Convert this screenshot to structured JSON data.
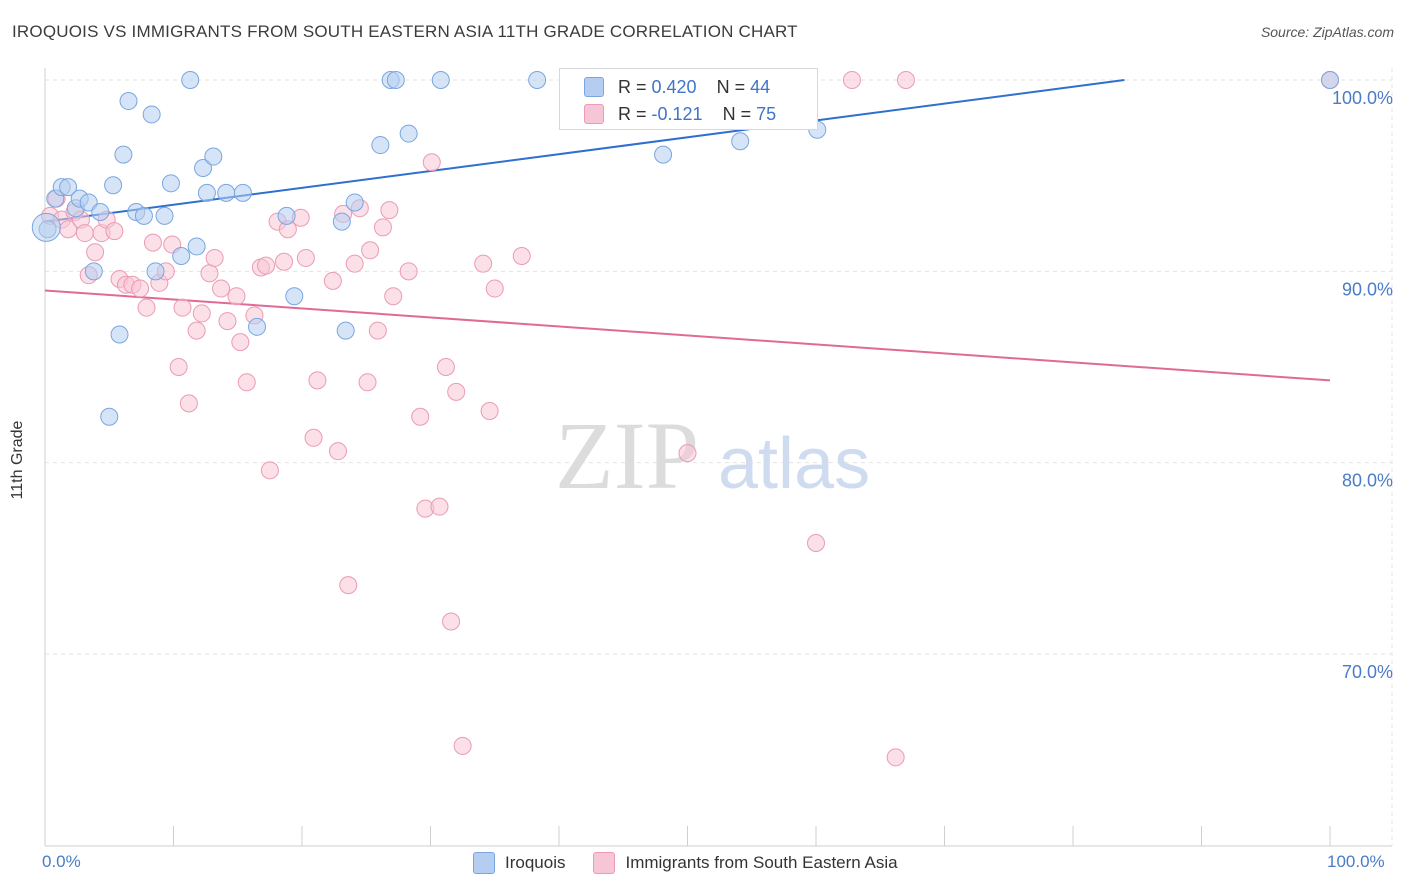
{
  "title": "IROQUOIS VS IMMIGRANTS FROM SOUTH EASTERN ASIA 11TH GRADE CORRELATION CHART",
  "source": "Source: ZipAtlas.com",
  "watermark": {
    "zip": "ZIP",
    "atlas": "atlas"
  },
  "chart_data": {
    "type": "scatter",
    "xlabel": "",
    "ylabel": "11th Grade",
    "xlim": [
      0,
      100
    ],
    "ylim": [
      61,
      102
    ],
    "x_ticks": [
      "0.0%",
      "100.0%"
    ],
    "y_ticks": [
      {
        "value": 100,
        "label": "100.0%"
      },
      {
        "value": 90,
        "label": "90.0%"
      },
      {
        "value": 80,
        "label": "80.0%"
      },
      {
        "value": 70,
        "label": "70.0%"
      }
    ],
    "grid": true,
    "legend_position": "bottom",
    "series": [
      {
        "name": "Iroquois",
        "color": "#7aa6e0",
        "fill": "#b4cdf0",
        "line_color": "#2f6fcf",
        "R": "0.420",
        "N": "44",
        "trend": {
          "x0": 0,
          "y0": 92.6,
          "x1": 84,
          "y1": 100.0
        },
        "points": [
          [
            0.2,
            92.2
          ],
          [
            0.8,
            93.8
          ],
          [
            1.3,
            94.4
          ],
          [
            1.8,
            94.4
          ],
          [
            2.4,
            93.3
          ],
          [
            2.7,
            93.8
          ],
          [
            3.4,
            93.6
          ],
          [
            3.8,
            90.0
          ],
          [
            4.3,
            93.1
          ],
          [
            5.0,
            82.4
          ],
          [
            5.3,
            94.5
          ],
          [
            5.8,
            86.7
          ],
          [
            6.1,
            96.1
          ],
          [
            6.5,
            98.9
          ],
          [
            7.1,
            93.1
          ],
          [
            7.7,
            92.9
          ],
          [
            8.3,
            98.2
          ],
          [
            8.6,
            90.0
          ],
          [
            9.3,
            92.9
          ],
          [
            9.8,
            94.6
          ],
          [
            10.6,
            90.8
          ],
          [
            11.3,
            100.0
          ],
          [
            11.8,
            91.3
          ],
          [
            12.3,
            95.4
          ],
          [
            12.6,
            94.1
          ],
          [
            13.1,
            96.0
          ],
          [
            14.1,
            94.1
          ],
          [
            15.4,
            94.1
          ],
          [
            16.5,
            87.1
          ],
          [
            18.8,
            92.9
          ],
          [
            19.4,
            88.7
          ],
          [
            23.1,
            92.6
          ],
          [
            23.4,
            86.9
          ],
          [
            24.1,
            93.6
          ],
          [
            26.1,
            96.6
          ],
          [
            26.9,
            100.0
          ],
          [
            27.3,
            100.0
          ],
          [
            28.3,
            97.2
          ],
          [
            30.8,
            100.0
          ],
          [
            38.3,
            100.0
          ],
          [
            48.1,
            96.1
          ],
          [
            54.1,
            96.8
          ],
          [
            60.1,
            97.4
          ],
          [
            100.0,
            100.0
          ]
        ]
      },
      {
        "name": "Immigrants from South Eastern Asia",
        "color": "#ec9ab5",
        "fill": "#f7c6d6",
        "line_color": "#e06a96",
        "R": "-0.121",
        "N": "75",
        "trend": {
          "x0": 0,
          "y0": 89.0,
          "x1": 100,
          "y1": 84.3
        },
        "points": [
          [
            0.4,
            92.9
          ],
          [
            0.9,
            93.8
          ],
          [
            1.3,
            92.7
          ],
          [
            1.8,
            92.2
          ],
          [
            2.3,
            93.1
          ],
          [
            2.8,
            92.7
          ],
          [
            3.1,
            92.0
          ],
          [
            3.4,
            89.8
          ],
          [
            3.9,
            91.0
          ],
          [
            4.4,
            92.0
          ],
          [
            4.8,
            92.7
          ],
          [
            5.4,
            92.1
          ],
          [
            5.8,
            89.6
          ],
          [
            6.3,
            89.3
          ],
          [
            6.8,
            89.3
          ],
          [
            7.4,
            89.1
          ],
          [
            7.9,
            88.1
          ],
          [
            8.4,
            91.5
          ],
          [
            8.9,
            89.4
          ],
          [
            9.4,
            90.0
          ],
          [
            9.9,
            91.4
          ],
          [
            10.4,
            85.0
          ],
          [
            10.7,
            88.1
          ],
          [
            11.2,
            83.1
          ],
          [
            11.8,
            86.9
          ],
          [
            12.2,
            87.8
          ],
          [
            12.8,
            89.9
          ],
          [
            13.2,
            90.7
          ],
          [
            13.7,
            89.1
          ],
          [
            14.2,
            87.4
          ],
          [
            14.9,
            88.7
          ],
          [
            15.2,
            86.3
          ],
          [
            15.7,
            84.2
          ],
          [
            16.3,
            87.7
          ],
          [
            16.8,
            90.2
          ],
          [
            17.2,
            90.3
          ],
          [
            17.5,
            79.6
          ],
          [
            18.1,
            92.6
          ],
          [
            18.6,
            90.5
          ],
          [
            18.9,
            92.2
          ],
          [
            19.9,
            92.8
          ],
          [
            20.3,
            90.7
          ],
          [
            20.9,
            81.3
          ],
          [
            21.2,
            84.3
          ],
          [
            22.4,
            89.5
          ],
          [
            22.8,
            80.6
          ],
          [
            23.2,
            93.0
          ],
          [
            23.6,
            73.6
          ],
          [
            24.1,
            90.4
          ],
          [
            24.5,
            93.3
          ],
          [
            25.1,
            84.2
          ],
          [
            25.3,
            91.1
          ],
          [
            25.9,
            86.9
          ],
          [
            26.3,
            92.3
          ],
          [
            26.8,
            93.2
          ],
          [
            27.1,
            88.7
          ],
          [
            28.3,
            90.0
          ],
          [
            29.2,
            82.4
          ],
          [
            29.6,
            77.6
          ],
          [
            30.1,
            95.7
          ],
          [
            30.7,
            77.7
          ],
          [
            31.2,
            85.0
          ],
          [
            31.6,
            71.7
          ],
          [
            32.0,
            83.7
          ],
          [
            32.5,
            65.2
          ],
          [
            34.1,
            90.4
          ],
          [
            34.6,
            82.7
          ],
          [
            35.0,
            89.1
          ],
          [
            37.1,
            90.8
          ],
          [
            50.0,
            80.5
          ],
          [
            60.0,
            75.8
          ],
          [
            62.8,
            100.0
          ],
          [
            66.2,
            64.6
          ],
          [
            67.0,
            100.0
          ],
          [
            100.0,
            100.0
          ]
        ]
      }
    ]
  },
  "legend": {
    "items": [
      {
        "label": "Iroquois"
      },
      {
        "label": "Immigrants from South Eastern Asia"
      }
    ]
  },
  "stats": {
    "r_label": "R = ",
    "n_label": "N = ",
    "rows": [
      {
        "r": "0.420",
        "n": "44"
      },
      {
        "r": "-0.121",
        "n": "75"
      }
    ]
  }
}
